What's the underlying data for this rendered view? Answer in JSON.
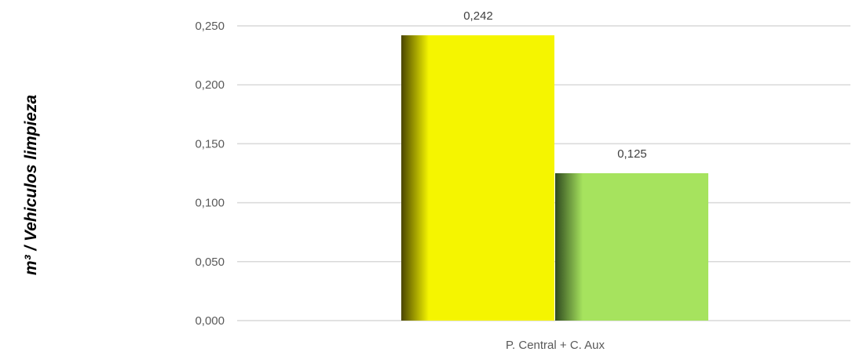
{
  "chart_data": {
    "type": "bar",
    "categories": [
      "P. Central + C. Aux"
    ],
    "series": [
      {
        "values": [
          0.242
        ],
        "color": "#f5f500",
        "color_dark": "#4a4500"
      },
      {
        "values": [
          0.125
        ],
        "color": "#a6e35e",
        "color_dark": "#2f4a1e"
      }
    ],
    "data_labels": [
      "0,242",
      "0,125"
    ],
    "ylabel": "m³ / Vehiculos limpieza",
    "xlabel": "",
    "title": "",
    "ylim": [
      0,
      0.25
    ],
    "yticks": [
      0,
      0.05,
      0.1,
      0.15,
      0.2,
      0.25
    ],
    "ytick_labels": [
      "0,000",
      "0,050",
      "0,100",
      "0,150",
      "0,200",
      "0,250"
    ],
    "grid": true,
    "legend": "none",
    "gridline_color": "#d9d9d9"
  }
}
